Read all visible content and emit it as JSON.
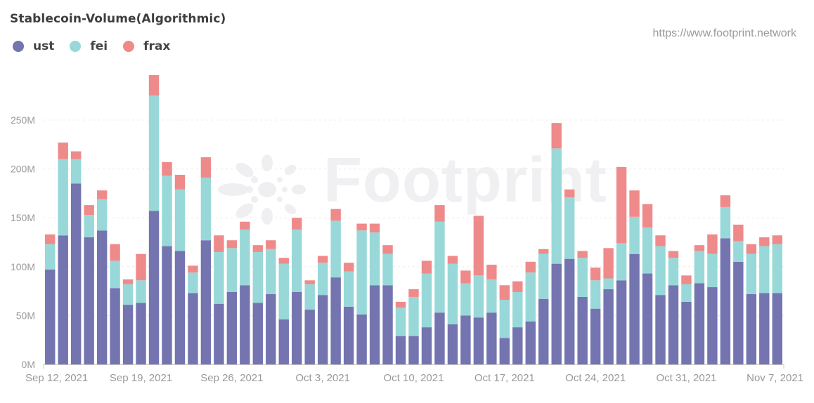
{
  "header": {
    "title": "Stablecoin-Volume(Algorithmic)",
    "url": "https://www.footprint.network",
    "watermark": "Footprint"
  },
  "legend": [
    {
      "label": "ust",
      "color": "#7474b0"
    },
    {
      "label": "fei",
      "color": "#98d8d8"
    },
    {
      "label": "frax",
      "color": "#ef8a8a"
    }
  ],
  "chart_data": {
    "type": "bar",
    "stacked": true,
    "title": "Stablecoin-Volume(Algorithmic)",
    "xlabel": "",
    "ylabel": "",
    "ylim": [
      0,
      300
    ],
    "y_ticks": [
      "0M",
      "50M",
      "100M",
      "150M",
      "200M",
      "250M"
    ],
    "x_tick_labels": [
      "Sep 12, 2021",
      "Sep 19, 2021",
      "Sep 26, 2021",
      "Oct 3, 2021",
      "Oct 10, 2021",
      "Oct 17, 2021",
      "Oct 24, 2021",
      "Oct 31, 2021",
      "Nov 7, 2021"
    ],
    "grid": true,
    "legend_position": "top-left",
    "units": "M (millions)",
    "categories": [
      "2021-09-12",
      "2021-09-13",
      "2021-09-14",
      "2021-09-15",
      "2021-09-16",
      "2021-09-17",
      "2021-09-18",
      "2021-09-19",
      "2021-09-20",
      "2021-09-21",
      "2021-09-22",
      "2021-09-23",
      "2021-09-24",
      "2021-09-25",
      "2021-09-26",
      "2021-09-27",
      "2021-09-28",
      "2021-09-29",
      "2021-09-30",
      "2021-10-01",
      "2021-10-02",
      "2021-10-03",
      "2021-10-04",
      "2021-10-05",
      "2021-10-06",
      "2021-10-07",
      "2021-10-08",
      "2021-10-09",
      "2021-10-10",
      "2021-10-11",
      "2021-10-12",
      "2021-10-13",
      "2021-10-14",
      "2021-10-15",
      "2021-10-16",
      "2021-10-17",
      "2021-10-18",
      "2021-10-19",
      "2021-10-20",
      "2021-10-21",
      "2021-10-22",
      "2021-10-23",
      "2021-10-24",
      "2021-10-25",
      "2021-10-26",
      "2021-10-27",
      "2021-10-28",
      "2021-10-29",
      "2021-10-30",
      "2021-10-31",
      "2021-11-01",
      "2021-11-02",
      "2021-11-03",
      "2021-11-04",
      "2021-11-05",
      "2021-11-06",
      "2021-11-07"
    ],
    "series": [
      {
        "name": "ust",
        "color": "#7474b0",
        "values": [
          97,
          132,
          185,
          130,
          137,
          78,
          61,
          63,
          157,
          121,
          116,
          73,
          127,
          62,
          74,
          81,
          63,
          72,
          46,
          74,
          56,
          71,
          89,
          59,
          51,
          81,
          81,
          29,
          29,
          38,
          53,
          41,
          50,
          48,
          53,
          27,
          38,
          44,
          67,
          103,
          108,
          69,
          57,
          77,
          86,
          113,
          93,
          71,
          81,
          64,
          83,
          79,
          129,
          105,
          72,
          73,
          73
        ]
      },
      {
        "name": "fei",
        "color": "#98d8d8",
        "values": [
          26,
          78,
          25,
          23,
          32,
          28,
          21,
          23,
          118,
          72,
          63,
          21,
          64,
          53,
          45,
          57,
          52,
          46,
          57,
          64,
          26,
          33,
          58,
          36,
          86,
          54,
          32,
          29,
          40,
          55,
          93,
          62,
          33,
          43,
          34,
          39,
          36,
          50,
          46,
          118,
          63,
          40,
          29,
          11,
          38,
          38,
          47,
          50,
          28,
          18,
          33,
          34,
          32,
          21,
          41,
          48,
          50
        ]
      },
      {
        "name": "frax",
        "color": "#ef8a8a",
        "values": [
          10,
          17,
          8,
          10,
          9,
          17,
          5,
          27,
          21,
          14,
          15,
          7,
          21,
          17,
          8,
          8,
          7,
          9,
          6,
          12,
          4,
          7,
          12,
          9,
          7,
          9,
          9,
          6,
          8,
          13,
          17,
          8,
          13,
          61,
          15,
          15,
          11,
          11,
          5,
          26,
          8,
          7,
          13,
          31,
          78,
          27,
          24,
          11,
          7,
          9,
          6,
          20,
          12,
          17,
          10,
          9,
          9
        ]
      }
    ]
  }
}
